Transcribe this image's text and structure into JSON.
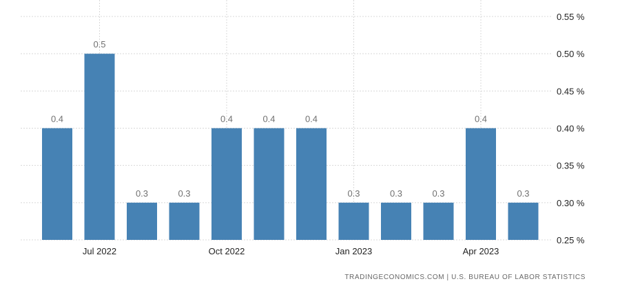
{
  "chart_data": {
    "type": "bar",
    "categories": [
      "Jun 2022",
      "Jul 2022",
      "Aug 2022",
      "Sep 2022",
      "Oct 2022",
      "Nov 2022",
      "Dec 2022",
      "Jan 2023",
      "Feb 2023",
      "Mar 2023",
      "Apr 2023",
      "May 2023"
    ],
    "values": [
      0.4,
      0.5,
      0.3,
      0.3,
      0.4,
      0.4,
      0.4,
      0.3,
      0.3,
      0.3,
      0.4,
      0.3
    ],
    "data_labels": [
      "0.4",
      "0.5",
      "0.3",
      "0.3",
      "0.4",
      "0.4",
      "0.4",
      "0.3",
      "0.3",
      "0.3",
      "0.4",
      "0.3"
    ],
    "ylim": [
      0.25,
      0.55
    ],
    "y_ticks": [
      {
        "value": 0.55,
        "label": "0.55 %"
      },
      {
        "value": 0.5,
        "label": "0.50 %"
      },
      {
        "value": 0.45,
        "label": "0.45 %"
      },
      {
        "value": 0.4,
        "label": "0.40 %"
      },
      {
        "value": 0.35,
        "label": "0.35 %"
      },
      {
        "value": 0.3,
        "label": "0.30 %"
      },
      {
        "value": 0.25,
        "label": "0.25 %"
      }
    ],
    "x_tick_labels": [
      {
        "index": 1,
        "label": "Jul 2022"
      },
      {
        "index": 4,
        "label": "Oct 2022"
      },
      {
        "index": 7,
        "label": "Jan 2023"
      },
      {
        "index": 10,
        "label": "Apr 2023"
      }
    ],
    "y_axis_position": "right",
    "grid": true,
    "bar_color": "#4682b4"
  },
  "source_text": "TRADINGECONOMICS.COM  |  U.S. BUREAU OF LABOR STATISTICS"
}
